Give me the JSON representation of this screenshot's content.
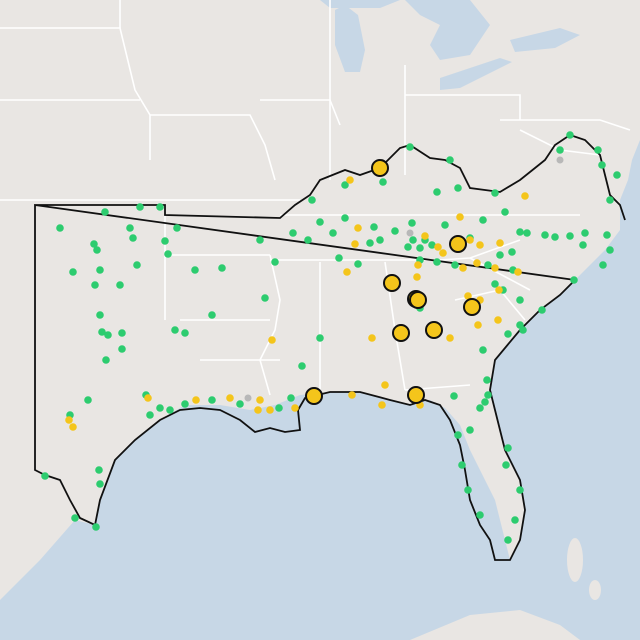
{
  "map": {
    "basemap": "light-gray-canvas",
    "colors": {
      "land": "#e9e6e3",
      "water": "#c7d7e6",
      "state_border": "#ffffff",
      "region_outline": "#111111",
      "station_green": "#2dcc6f",
      "station_yellow": "#f4c51b",
      "station_gray": "#b8b8b8",
      "highlight_stroke": "#111111"
    },
    "legend": "none",
    "highlighted_station_count": 10
  }
}
